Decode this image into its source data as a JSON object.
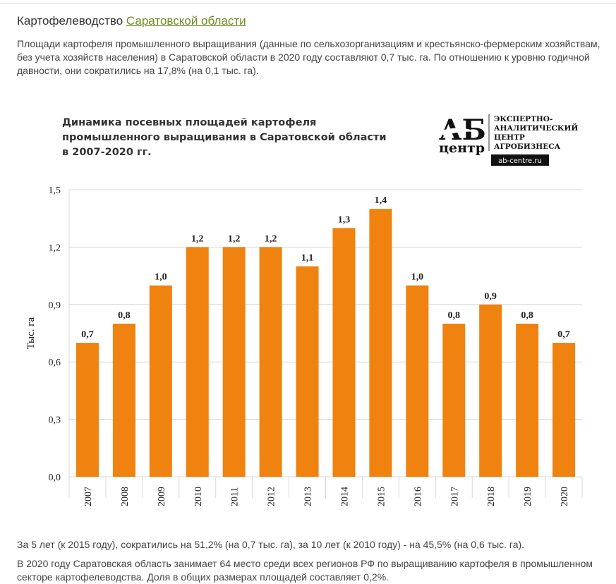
{
  "heading": {
    "text": "Картофелеводство ",
    "link": "Саратовской области"
  },
  "para1": "Площади картофеля промышленного выращивания (данные по сельхозорганизациям и крестьянско-фермерским хозяйствам, без учета хозяйств населения) в Саратовской области в 2020 году составляют 0,7 тыс. га. По отношению к уровню годичной давности, они сократились на 17,8% (на 0,1 тыс. га).",
  "logo": {
    "big": "АБ",
    "small": "центр",
    "lines": [
      "ЭКСПЕРТНО-",
      "АНАЛИТИЧЕСКИЙ",
      "ЦЕНТР",
      "АГРОБИЗНЕСА"
    ],
    "url": "ab-centre.ru"
  },
  "chart_data": {
    "type": "bar",
    "title": "Динамика посевных площадей картофеля\nпромышленного выращивания в Саратовской области\nв 2007-2020 гг.",
    "ylabel": "Тыс. га",
    "ylim": [
      0,
      1.5
    ],
    "yticks": [
      "0,0",
      "0,3",
      "0,6",
      "0,9",
      "1,2",
      "1,5"
    ],
    "grid": true,
    "color": "#f0820f",
    "categories": [
      "2007",
      "2008",
      "2009",
      "2010",
      "2011",
      "2012",
      "2013",
      "2014",
      "2015",
      "2016",
      "2017",
      "2018",
      "2019",
      "2020"
    ],
    "values": [
      0.7,
      0.8,
      1.0,
      1.2,
      1.2,
      1.2,
      1.1,
      1.3,
      1.4,
      1.0,
      0.8,
      0.9,
      0.8,
      0.7
    ],
    "labels": [
      "0,7",
      "0,8",
      "1,0",
      "1,2",
      "1,2",
      "1,2",
      "1,1",
      "1,3",
      "1,4",
      "1,0",
      "0,8",
      "0,9",
      "0,8",
      "0,7"
    ]
  },
  "para2": "За 5 лет (к 2015 году), сократились на 51,2% (на 0,7 тыс. га), за 10 лет (к 2010 году) - на 45,5% (на 0,6 тыс. га).",
  "para3": "В 2020 году Саратовская область занимает 64 место среди всех регионов РФ по выращиванию картофеля в промышленном секторе картофелеводства. Доля в общих размерах площадей составляет 0,2%."
}
